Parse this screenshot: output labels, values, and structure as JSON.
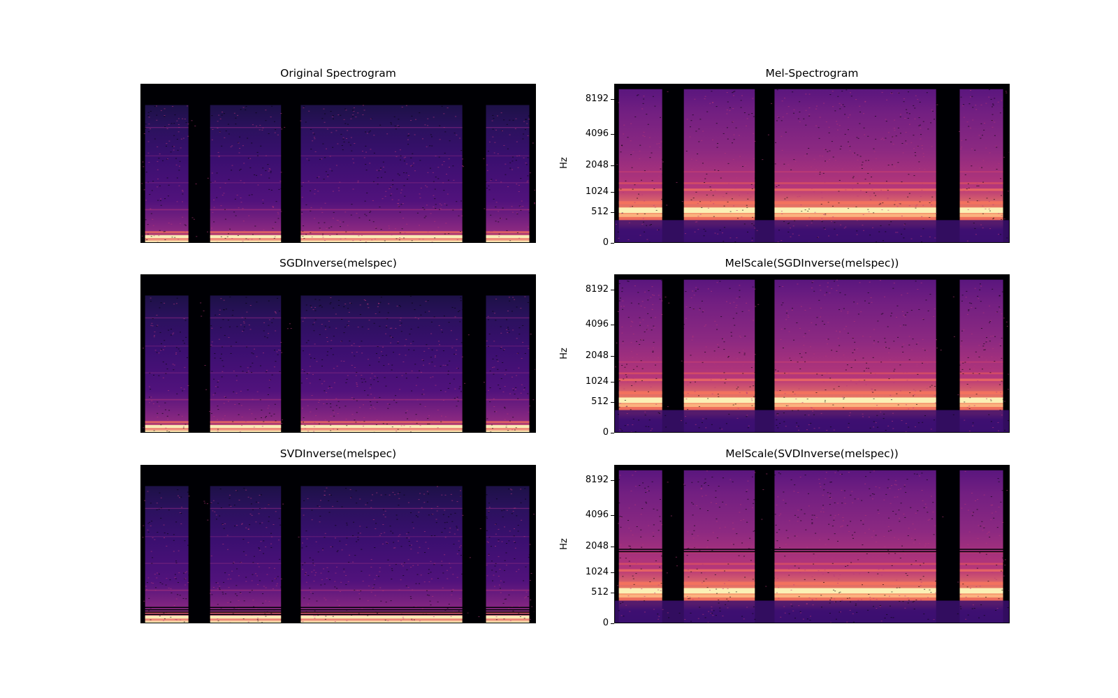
{
  "figure": {
    "colormap": "magma",
    "colors": {
      "background": "#ffffff",
      "low": "#000004",
      "mid": "#721f81",
      "high": "#fcfdbf"
    }
  },
  "panels": [
    {
      "title": "Original Spectrogram",
      "kind": "linear",
      "artifact": "none"
    },
    {
      "title": "Mel-Spectrogram",
      "kind": "mel",
      "artifact": "none",
      "ylabel": "Hz",
      "yticks": [
        "0",
        "512",
        "1024",
        "2048",
        "4096",
        "8192"
      ]
    },
    {
      "title": "SGDInverse(melspec)",
      "kind": "linear",
      "artifact": "none"
    },
    {
      "title": "MelScale(SGDInverse(melspec))",
      "kind": "mel",
      "artifact": "none",
      "ylabel": "Hz",
      "yticks": [
        "0",
        "512",
        "1024",
        "2048",
        "4096",
        "8192"
      ]
    },
    {
      "title": "SVDInverse(melspec)",
      "kind": "linear",
      "artifact": "low-band-lines"
    },
    {
      "title": "MelScale(SVDInverse(melspec))",
      "kind": "mel",
      "artifact": "high-band-lines",
      "ylabel": "Hz",
      "yticks": [
        "0",
        "512",
        "1024",
        "2048",
        "4096",
        "8192"
      ]
    }
  ],
  "chart_data": [
    {
      "type": "heatmap",
      "title": "Original Spectrogram"
    },
    {
      "type": "heatmap",
      "title": "Mel-Spectrogram",
      "ylabel": "Hz",
      "y_scale": "mel",
      "y_ticks": [
        0,
        512,
        1024,
        2048,
        4096,
        8192
      ]
    },
    {
      "type": "heatmap",
      "title": "SGDInverse(melspec)"
    },
    {
      "type": "heatmap",
      "title": "MelScale(SGDInverse(melspec))",
      "ylabel": "Hz",
      "y_scale": "mel",
      "y_ticks": [
        0,
        512,
        1024,
        2048,
        4096,
        8192
      ]
    },
    {
      "type": "heatmap",
      "title": "SVDInverse(melspec)"
    },
    {
      "type": "heatmap",
      "title": "MelScale(SVDInverse(melspec))",
      "ylabel": "Hz",
      "y_scale": "mel",
      "y_ticks": [
        0,
        512,
        1024,
        2048,
        4096,
        8192
      ]
    }
  ]
}
